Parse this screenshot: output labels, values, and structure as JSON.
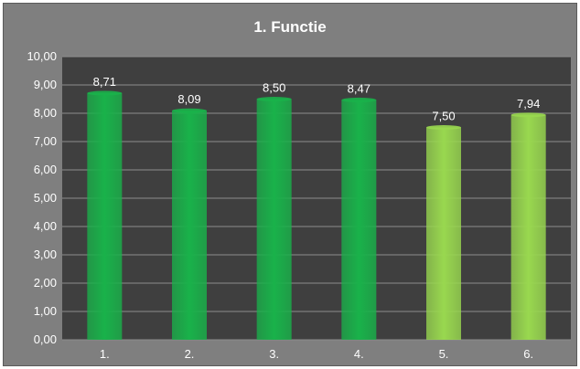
{
  "chart_data": {
    "type": "bar",
    "title": "1. Functie",
    "categories": [
      "1.",
      "2.",
      "3.",
      "4.",
      "5.",
      "6."
    ],
    "values": [
      8.71,
      8.09,
      8.5,
      8.47,
      7.5,
      7.94
    ],
    "data_labels": [
      "8,71",
      "8,09",
      "8,50",
      "8,47",
      "7,50",
      "7,94"
    ],
    "bar_colors": [
      "#19b24a",
      "#19b24a",
      "#19b24a",
      "#19b24a",
      "#99d84f",
      "#99d84f"
    ],
    "ylim": [
      0,
      10
    ],
    "yticks": [
      "0,00",
      "1,00",
      "2,00",
      "3,00",
      "4,00",
      "5,00",
      "6,00",
      "7,00",
      "8,00",
      "9,00",
      "10,00"
    ],
    "grid": true,
    "plot_background": "#3f3f3f",
    "frame_background": "#7f7f7f",
    "gridline_color": "#8c8c8c"
  }
}
